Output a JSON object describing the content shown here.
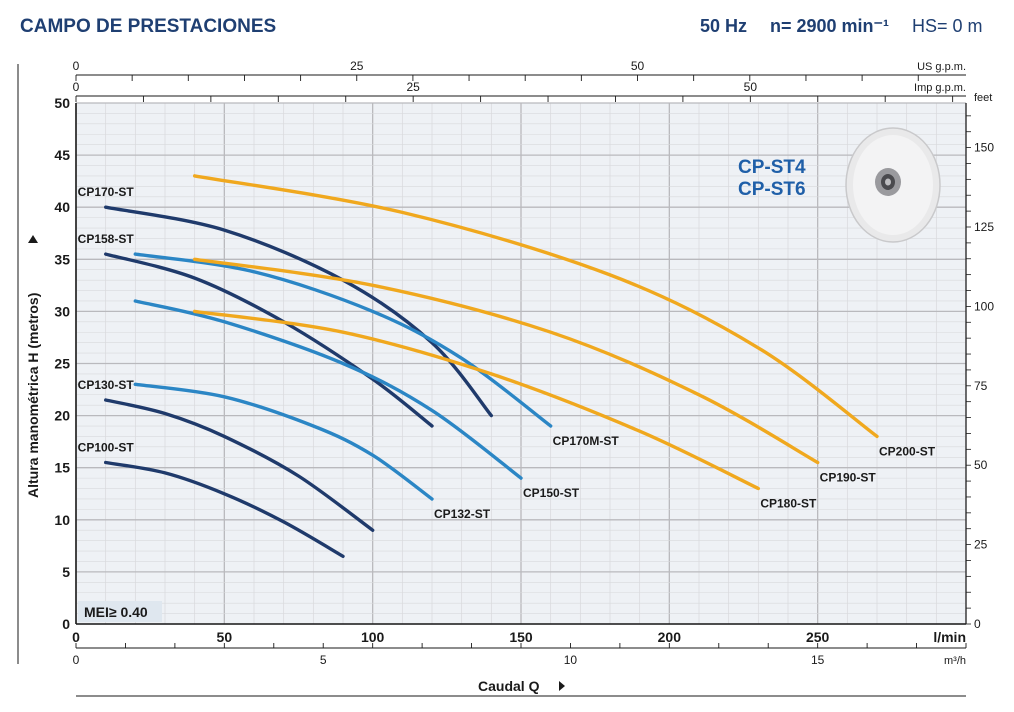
{
  "header": {
    "title": "CAMPO DE PRESTACIONES",
    "freq": "50 Hz",
    "speed": "n= 2900 min⁻¹",
    "hs": "HS= 0 m"
  },
  "models": [
    "CP-ST4",
    "CP-ST6"
  ],
  "badge": "MEI≥ 0.40",
  "chart_data": {
    "type": "line",
    "xlabel": "Caudal Q",
    "ylabel": "Altura manométrica H (metros)",
    "x_unit": "l/min",
    "y_unit_right": "feet",
    "xlim": [
      0,
      300
    ],
    "ylim": [
      0,
      50
    ],
    "x_ticks": [
      0,
      50,
      100,
      150,
      200,
      250
    ],
    "y_ticks": [
      0,
      5,
      10,
      15,
      20,
      25,
      30,
      35,
      40,
      45,
      50
    ],
    "grid": true,
    "secondary_axes": {
      "us_gpm": {
        "unit": "US g.p.m.",
        "ticks": [
          0,
          25,
          50
        ]
      },
      "imp_gpm": {
        "unit": "Imp g.p.m.",
        "ticks": [
          0,
          25,
          50
        ]
      },
      "m3h": {
        "unit": "m³/h",
        "ticks": [
          0,
          5,
          10,
          15
        ]
      },
      "feet": {
        "unit": "feet",
        "ticks": [
          0,
          25,
          50,
          75,
          100,
          125,
          150
        ]
      }
    },
    "series": [
      {
        "name": "CP100-ST",
        "color": "#1f3a6b",
        "x": [
          10,
          30,
          50,
          70,
          90
        ],
        "y": [
          15.5,
          14.5,
          12.5,
          9.8,
          6.5
        ]
      },
      {
        "name": "CP130-ST",
        "color": "#1f3a6b",
        "x": [
          10,
          30,
          50,
          75,
          100
        ],
        "y": [
          21.5,
          20.2,
          18.0,
          14.2,
          9.0
        ]
      },
      {
        "name": "CP132-ST",
        "color": "#2b86c5",
        "x": [
          20,
          50,
          80,
          100,
          120
        ],
        "y": [
          23.0,
          21.8,
          19.0,
          16.2,
          12.0
        ]
      },
      {
        "name": "CP158-ST",
        "color": "#1f3a6b",
        "x": [
          10,
          40,
          70,
          100,
          120
        ],
        "y": [
          35.5,
          33.2,
          29.0,
          23.5,
          19.0
        ]
      },
      {
        "name": "CP170-ST",
        "color": "#1f3a6b",
        "x": [
          10,
          50,
          90,
          120,
          140
        ],
        "y": [
          40.0,
          37.8,
          33.0,
          27.0,
          20.0
        ]
      },
      {
        "name": "CP150-ST",
        "color": "#2b86c5",
        "x": [
          20,
          50,
          90,
          120,
          150
        ],
        "y": [
          31.0,
          29.0,
          25.0,
          20.5,
          14.0
        ]
      },
      {
        "name": "CP170M-ST",
        "color": "#2b86c5",
        "x": [
          20,
          60,
          100,
          130,
          160
        ],
        "y": [
          35.5,
          33.8,
          30.0,
          25.5,
          19.0
        ]
      },
      {
        "name": "CP180-ST",
        "color": "#f0a81e",
        "x": [
          40,
          90,
          140,
          190,
          230
        ],
        "y": [
          30.0,
          28.0,
          24.0,
          18.5,
          13.0
        ]
      },
      {
        "name": "CP190-ST",
        "color": "#f0a81e",
        "x": [
          40,
          100,
          160,
          210,
          250
        ],
        "y": [
          35.0,
          32.5,
          28.0,
          22.0,
          15.5
        ]
      },
      {
        "name": "CP200-ST",
        "color": "#f0a81e",
        "x": [
          40,
          110,
          180,
          230,
          270
        ],
        "y": [
          43.0,
          39.5,
          33.5,
          26.5,
          18.0
        ]
      }
    ]
  }
}
